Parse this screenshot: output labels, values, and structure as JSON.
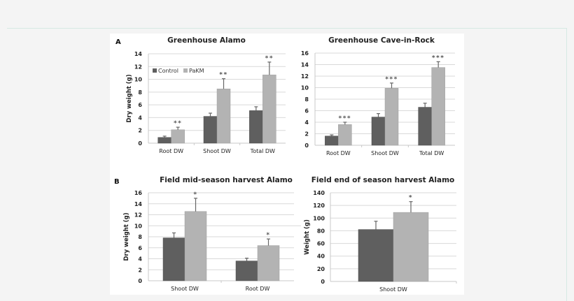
{
  "colors": {
    "control": "#5f5f5f",
    "pakm": "#b3b3b3",
    "background": "#f4f4f4",
    "figure_bg": "#ffffff"
  },
  "panels": {
    "A": "A",
    "B": "B"
  },
  "legend": {
    "control": "Control",
    "pakm": "PaKM"
  },
  "chart_data": [
    {
      "id": "greenhouse-alamo",
      "type": "bar",
      "panel": "A",
      "title": "Greenhouse Alamo",
      "xlabel": "",
      "ylabel": "Dry weight (g)",
      "ylim": [
        0,
        14
      ],
      "yticks": [
        0,
        2,
        4,
        6,
        8,
        10,
        12,
        14
      ],
      "grid": true,
      "legend_position": "upper-left inside",
      "categories": [
        "Root DW",
        "Shoot DW",
        "Total DW"
      ],
      "series": [
        {
          "name": "Control",
          "values": [
            0.9,
            4.2,
            5.1
          ],
          "errors": [
            0.2,
            0.5,
            0.6
          ]
        },
        {
          "name": "PaKM",
          "values": [
            2.1,
            8.5,
            10.7
          ],
          "errors": [
            0.4,
            1.6,
            2.0
          ]
        }
      ],
      "significance": [
        "**",
        "**",
        "**"
      ]
    },
    {
      "id": "greenhouse-cave-in-rock",
      "type": "bar",
      "panel": "A",
      "title": "Greenhouse Cave-in-Rock",
      "xlabel": "",
      "ylabel": "",
      "ylim": [
        0,
        16
      ],
      "yticks": [
        0,
        2,
        4,
        6,
        8,
        10,
        12,
        14,
        16
      ],
      "grid": true,
      "categories": [
        "Root DW",
        "Shoot DW",
        "Total DW"
      ],
      "series": [
        {
          "name": "Control",
          "values": [
            1.6,
            4.9,
            6.6
          ],
          "errors": [
            0.2,
            0.6,
            0.7
          ]
        },
        {
          "name": "PaKM",
          "values": [
            3.6,
            9.9,
            13.5
          ],
          "errors": [
            0.4,
            0.9,
            1.0
          ]
        }
      ],
      "significance": [
        "***",
        "***",
        "***"
      ]
    },
    {
      "id": "field-mid-season-alamo",
      "type": "bar",
      "panel": "B",
      "title": "Field mid-season harvest Alamo",
      "xlabel": "",
      "ylabel": "Dry weight (g)",
      "ylim": [
        0,
        16
      ],
      "yticks": [
        0,
        2,
        4,
        6,
        8,
        10,
        12,
        14,
        16
      ],
      "grid": true,
      "categories": [
        "Shoot DW",
        "Root DW"
      ],
      "series": [
        {
          "name": "Control",
          "values": [
            7.8,
            3.6
          ],
          "errors": [
            0.9,
            0.5
          ]
        },
        {
          "name": "PaKM",
          "values": [
            12.6,
            6.4
          ],
          "errors": [
            2.4,
            1.2
          ]
        }
      ],
      "significance": [
        "*",
        "*"
      ]
    },
    {
      "id": "field-end-season-alamo",
      "type": "bar",
      "panel": "B",
      "title": "Field end of season harvest Alamo",
      "xlabel": "",
      "ylabel": "Weight (g)",
      "ylim": [
        0,
        140
      ],
      "yticks": [
        0,
        20,
        40,
        60,
        80,
        100,
        120,
        140
      ],
      "grid": true,
      "categories": [
        "Shoot DW"
      ],
      "series": [
        {
          "name": "Control",
          "values": [
            82
          ],
          "errors": [
            13
          ]
        },
        {
          "name": "PaKM",
          "values": [
            109
          ],
          "errors": [
            17
          ]
        }
      ],
      "significance": [
        "*"
      ]
    }
  ]
}
